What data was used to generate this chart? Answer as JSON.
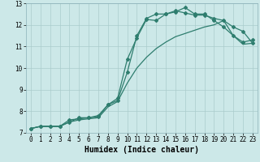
{
  "xlabel": "Humidex (Indice chaleur)",
  "ylabel": "",
  "bg_color": "#cce8e8",
  "grid_color": "#aacccc",
  "line_color": "#2e7d6e",
  "xlim": [
    -0.5,
    23.5
  ],
  "ylim": [
    7,
    13
  ],
  "xticks": [
    0,
    1,
    2,
    3,
    4,
    5,
    6,
    7,
    8,
    9,
    10,
    11,
    12,
    13,
    14,
    15,
    16,
    17,
    18,
    19,
    20,
    21,
    22,
    23
  ],
  "yticks": [
    7,
    8,
    9,
    10,
    11,
    12,
    13
  ],
  "line1_x": [
    0,
    1,
    2,
    3,
    4,
    5,
    6,
    7,
    8,
    9,
    10,
    11,
    12,
    13,
    14,
    15,
    16,
    17,
    18,
    19,
    20,
    21,
    22,
    23
  ],
  "line1_y": [
    7.2,
    7.3,
    7.3,
    7.3,
    7.5,
    7.7,
    7.7,
    7.8,
    8.3,
    8.6,
    10.4,
    11.4,
    12.25,
    12.2,
    12.5,
    12.6,
    12.8,
    12.5,
    12.5,
    12.2,
    11.9,
    11.5,
    11.2,
    11.3
  ],
  "line2_x": [
    0,
    1,
    2,
    3,
    4,
    5,
    6,
    7,
    8,
    9,
    10,
    11,
    12,
    13,
    14,
    15,
    16,
    17,
    18,
    19,
    20,
    21,
    22,
    23
  ],
  "line2_y": [
    7.2,
    7.3,
    7.3,
    7.3,
    7.6,
    7.65,
    7.7,
    7.75,
    8.3,
    8.5,
    9.8,
    11.5,
    12.3,
    12.5,
    12.5,
    12.65,
    12.55,
    12.45,
    12.45,
    12.3,
    12.2,
    11.9,
    11.7,
    11.15
  ],
  "line3_x": [
    0,
    1,
    2,
    3,
    4,
    5,
    6,
    7,
    8,
    9,
    10,
    11,
    12,
    13,
    14,
    15,
    16,
    17,
    18,
    19,
    20,
    21,
    22,
    23
  ],
  "line3_y": [
    7.2,
    7.3,
    7.3,
    7.3,
    7.5,
    7.6,
    7.65,
    7.7,
    8.2,
    8.45,
    9.3,
    10.0,
    10.5,
    10.9,
    11.2,
    11.45,
    11.6,
    11.75,
    11.9,
    12.0,
    12.2,
    11.5,
    11.1,
    11.15
  ],
  "marker": "D",
  "markersize": 2.0,
  "linewidth": 0.9,
  "xlabel_fontsize": 7,
  "tick_fontsize": 5.5
}
